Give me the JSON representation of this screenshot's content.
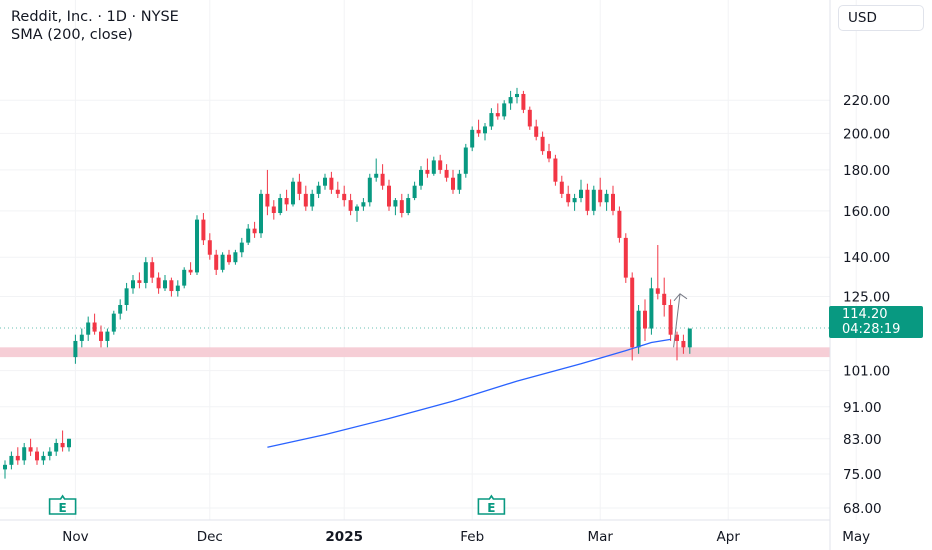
{
  "legend": {
    "symbol_line": "Reddit, Inc. · 1D · NYSE",
    "indicator_line": "SMA (200, close)"
  },
  "currency": "USD",
  "last_price": {
    "price": "114.20",
    "countdown": "04:28:19",
    "color": "#089981"
  },
  "colors": {
    "up": "#089981",
    "down": "#f23645",
    "sma": "#2962ff",
    "zone": "#f4c6cf",
    "arrow": "#787b86"
  },
  "earnings_icons": [
    {
      "label": "E",
      "date_index": 0
    },
    {
      "label": "E",
      "date_index": 1
    }
  ],
  "chart_data": {
    "type": "candlestick",
    "title": "Reddit, Inc. · 1D · NYSE",
    "y_scale": "log",
    "y_ticks": [
      "220.00",
      "200.00",
      "180.00",
      "160.00",
      "140.00",
      "125.00",
      "101.00",
      "91.00",
      "83.00",
      "75.00",
      "68.00"
    ],
    "x_ticks": [
      "Nov",
      "Dec",
      "2025",
      "Feb",
      "Mar",
      "Apr",
      "May"
    ],
    "earnings_dates": [
      "2024-10-29",
      "2025-02-12"
    ],
    "support_zone": [
      105,
      108
    ],
    "projection_arrow": {
      "from": 108,
      "to": 126
    },
    "ohlc": [
      [
        76,
        78,
        74,
        77
      ],
      [
        77,
        80,
        76,
        79
      ],
      [
        79,
        81,
        77,
        78
      ],
      [
        78,
        82,
        77,
        81
      ],
      [
        81,
        83,
        79,
        80
      ],
      [
        80,
        81,
        77,
        78
      ],
      [
        78,
        80,
        77,
        79
      ],
      [
        79,
        81,
        78,
        80
      ],
      [
        80,
        83,
        79,
        82
      ],
      [
        82,
        85,
        80,
        81
      ],
      [
        81,
        83,
        80,
        83
      ],
      [
        105,
        112,
        103,
        110
      ],
      [
        110,
        114,
        108,
        112
      ],
      [
        112,
        118,
        110,
        116
      ],
      [
        116,
        119,
        112,
        113
      ],
      [
        113,
        115,
        108,
        110
      ],
      [
        110,
        114,
        108,
        113
      ],
      [
        113,
        120,
        112,
        119
      ],
      [
        119,
        124,
        117,
        122
      ],
      [
        122,
        130,
        120,
        128
      ],
      [
        128,
        133,
        126,
        131
      ],
      [
        131,
        134,
        128,
        130
      ],
      [
        130,
        140,
        128,
        138
      ],
      [
        138,
        140,
        130,
        132
      ],
      [
        132,
        134,
        126,
        128
      ],
      [
        128,
        133,
        127,
        131
      ],
      [
        131,
        132,
        125,
        127
      ],
      [
        127,
        131,
        125,
        129
      ],
      [
        129,
        136,
        128,
        135
      ],
      [
        135,
        138,
        133,
        134
      ],
      [
        134,
        158,
        133,
        156
      ],
      [
        156,
        159,
        145,
        147
      ],
      [
        147,
        150,
        139,
        141
      ],
      [
        141,
        143,
        133,
        135
      ],
      [
        135,
        142,
        134,
        141
      ],
      [
        141,
        143,
        137,
        138
      ],
      [
        138,
        143,
        137,
        142
      ],
      [
        142,
        148,
        140,
        146
      ],
      [
        146,
        154,
        145,
        152
      ],
      [
        152,
        155,
        148,
        150
      ],
      [
        150,
        170,
        148,
        168
      ],
      [
        168,
        180,
        158,
        162
      ],
      [
        162,
        165,
        156,
        159
      ],
      [
        159,
        168,
        158,
        166
      ],
      [
        166,
        170,
        160,
        163
      ],
      [
        163,
        176,
        162,
        174
      ],
      [
        174,
        178,
        165,
        168
      ],
      [
        168,
        172,
        160,
        162
      ],
      [
        162,
        170,
        160,
        168
      ],
      [
        168,
        174,
        166,
        172
      ],
      [
        172,
        178,
        170,
        176
      ],
      [
        176,
        179,
        168,
        170
      ],
      [
        170,
        174,
        166,
        168
      ],
      [
        168,
        172,
        162,
        165
      ],
      [
        165,
        168,
        158,
        160
      ],
      [
        160,
        163,
        155,
        162
      ],
      [
        162,
        166,
        160,
        164
      ],
      [
        164,
        178,
        162,
        176
      ],
      [
        176,
        186,
        174,
        178
      ],
      [
        178,
        183,
        170,
        172
      ],
      [
        172,
        175,
        160,
        162
      ],
      [
        162,
        166,
        158,
        165
      ],
      [
        165,
        168,
        157,
        159
      ],
      [
        159,
        168,
        158,
        166
      ],
      [
        166,
        174,
        165,
        172
      ],
      [
        172,
        182,
        170,
        180
      ],
      [
        180,
        186,
        176,
        178
      ],
      [
        178,
        187,
        177,
        185
      ],
      [
        185,
        188,
        178,
        180
      ],
      [
        180,
        183,
        174,
        176
      ],
      [
        176,
        180,
        168,
        170
      ],
      [
        170,
        180,
        168,
        178
      ],
      [
        178,
        194,
        176,
        192
      ],
      [
        192,
        204,
        190,
        202
      ],
      [
        202,
        208,
        198,
        200
      ],
      [
        200,
        206,
        196,
        204
      ],
      [
        204,
        215,
        202,
        212
      ],
      [
        212,
        218,
        208,
        210
      ],
      [
        210,
        220,
        208,
        218
      ],
      [
        218,
        226,
        214,
        222
      ],
      [
        222,
        228,
        218,
        224
      ],
      [
        224,
        226,
        212,
        214
      ],
      [
        214,
        216,
        202,
        204
      ],
      [
        204,
        208,
        196,
        198
      ],
      [
        198,
        201,
        188,
        190
      ],
      [
        190,
        194,
        184,
        186
      ],
      [
        186,
        188,
        172,
        174
      ],
      [
        174,
        177,
        166,
        168
      ],
      [
        168,
        172,
        162,
        164
      ],
      [
        164,
        168,
        160,
        166
      ],
      [
        166,
        175,
        164,
        170
      ],
      [
        170,
        173,
        158,
        160
      ],
      [
        160,
        172,
        158,
        170
      ],
      [
        170,
        176,
        162,
        164
      ],
      [
        164,
        170,
        160,
        168
      ],
      [
        168,
        172,
        158,
        160
      ],
      [
        160,
        162,
        146,
        148
      ],
      [
        148,
        150,
        130,
        132
      ],
      [
        132,
        134,
        104,
        108
      ],
      [
        108,
        122,
        106,
        120
      ],
      [
        120,
        124,
        110,
        114
      ],
      [
        114,
        132,
        112,
        128
      ],
      [
        128,
        145,
        124,
        126
      ],
      [
        126,
        132,
        118,
        122
      ],
      [
        122,
        124,
        110,
        112
      ],
      [
        112,
        113,
        104,
        110
      ],
      [
        110,
        112,
        106,
        108
      ],
      [
        108,
        114,
        106,
        114
      ]
    ],
    "sma_200": [
      {
        "index": 41,
        "value": 81
      },
      {
        "index": 50,
        "value": 84
      },
      {
        "index": 60,
        "value": 88
      },
      {
        "index": 70,
        "value": 92.5
      },
      {
        "index": 80,
        "value": 98
      },
      {
        "index": 90,
        "value": 103
      },
      {
        "index": 97,
        "value": 107
      },
      {
        "index": 101,
        "value": 109.5
      },
      {
        "index": 104,
        "value": 110.5
      }
    ]
  }
}
